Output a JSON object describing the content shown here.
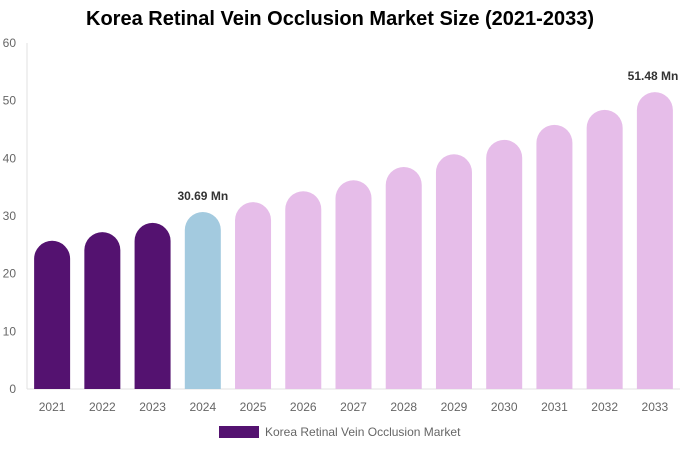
{
  "chart_data": {
    "type": "bar",
    "title": "Korea Retinal Vein Occlusion Market Size (2021-2033)",
    "categories": [
      "2021",
      "2022",
      "2023",
      "2024",
      "2025",
      "2026",
      "2027",
      "2028",
      "2029",
      "2030",
      "2031",
      "2032",
      "2033"
    ],
    "series": [
      {
        "name": "Korea Retinal Vein Occlusion Market",
        "values": [
          25.7,
          27.2,
          28.8,
          30.69,
          32.4,
          34.3,
          36.2,
          38.5,
          40.7,
          43.2,
          45.8,
          48.4,
          51.48
        ]
      }
    ],
    "bar_colors": [
      "#541270",
      "#541270",
      "#541270",
      "#a3cadf",
      "#e6bde9",
      "#e6bde9",
      "#e6bde9",
      "#e6bde9",
      "#e6bde9",
      "#e6bde9",
      "#e6bde9",
      "#e6bde9",
      "#e6bde9"
    ],
    "data_labels": {
      "3": "30.69 Mn",
      "12": "51.48 Mn"
    },
    "ylim": [
      0,
      60
    ],
    "yticks": [
      "0",
      "10",
      "20",
      "30",
      "40",
      "50",
      "60"
    ],
    "xlabel": "",
    "ylabel": "",
    "grid": false,
    "legend": {
      "position": "bottom",
      "color": "#541270"
    }
  }
}
